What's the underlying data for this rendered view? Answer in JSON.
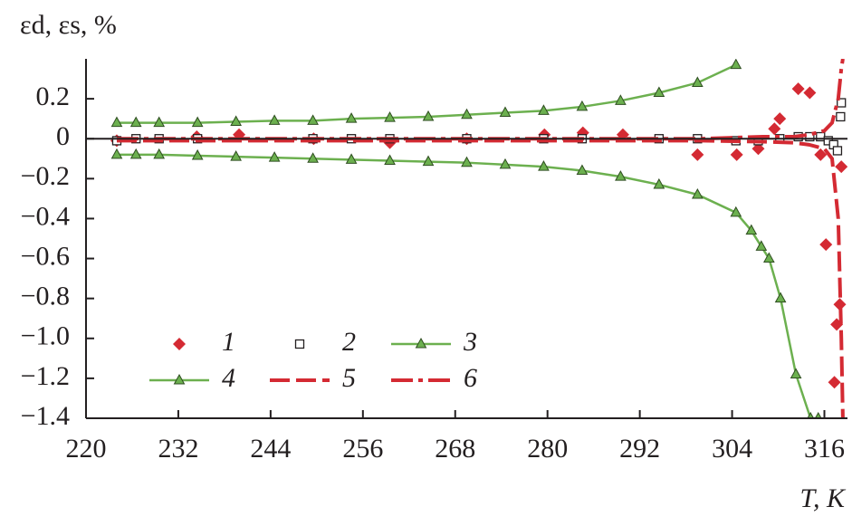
{
  "chart_data": {
    "type": "line",
    "ylabel": "εd, εs, %",
    "xlabel": "T, K",
    "xlim": [
      220,
      319
    ],
    "ylim": [
      -1.4,
      0.4
    ],
    "xticks": [
      220,
      232,
      244,
      256,
      268,
      280,
      292,
      304,
      316
    ],
    "yticks": [
      0.2,
      0,
      {
        "value": -0.2,
        "label": "−0.2"
      },
      {
        "value": -0.4,
        "label": "−0.4"
      },
      {
        "value": -0.6,
        "label": "−0.6"
      },
      {
        "value": -0.8,
        "label": "−0.8"
      },
      {
        "value": -1.0,
        "label": "−1.0"
      },
      {
        "value": -1.2,
        "label": "−1.2"
      },
      {
        "value": -1.4,
        "label": "−1.4"
      }
    ],
    "zero_line": true,
    "series": [
      {
        "name": "1",
        "color": "#d42a33",
        "mode": "markers",
        "marker": "diamond",
        "x": [
          224,
          234.4,
          239.9,
          249.6,
          259.5,
          269.5,
          279.6,
          284.6,
          289.8,
          299.5,
          304.6,
          307.4,
          309.5,
          310.2,
          312.6,
          314.1,
          315.5,
          316.2,
          317.3,
          317.6,
          318,
          318.2
        ],
        "values": [
          -0.01,
          0.01,
          0.02,
          0,
          -0.02,
          0,
          0.02,
          0.03,
          0.02,
          -0.08,
          -0.08,
          -0.05,
          0.05,
          0.1,
          0.25,
          0.23,
          -0.08,
          -0.53,
          -1.22,
          -0.93,
          -0.83,
          -0.14
        ]
      },
      {
        "name": "2",
        "color": "#231f20",
        "mode": "markers",
        "marker": "square",
        "x": [
          224,
          226.5,
          229.5,
          234.5,
          249.5,
          254.5,
          259.5,
          269.5,
          279.5,
          284.5,
          294.5,
          299.5,
          304.5,
          307.4,
          310.2,
          312.6,
          314.1,
          315.5,
          316.5,
          317.2,
          317.7,
          318.1,
          318.2
        ],
        "values": [
          -0.01,
          0,
          0,
          0,
          0,
          0,
          0,
          0,
          0,
          0,
          0,
          0,
          -0.01,
          -0.01,
          0,
          0.01,
          0.01,
          0.01,
          -0.01,
          -0.03,
          -0.06,
          0.11,
          0.18
        ]
      },
      {
        "name": "3",
        "color": "#6cb04f",
        "mode": "lines+markers",
        "marker": "triangle",
        "x": [
          224,
          226.5,
          229.5,
          234.5,
          239.5,
          244.5,
          249.5,
          254.5,
          259.5,
          264.5,
          269.5,
          274.5,
          279.5,
          284.5,
          289.5,
          294.5,
          299.5,
          304.5
        ],
        "values": [
          0.08,
          0.08,
          0.08,
          0.08,
          0.085,
          0.09,
          0.09,
          0.1,
          0.105,
          0.11,
          0.12,
          0.13,
          0.14,
          0.16,
          0.19,
          0.23,
          0.28,
          0.37
        ]
      },
      {
        "name": "4",
        "color": "#6cb04f",
        "mode": "lines+markers",
        "marker": "triangle",
        "x": [
          224,
          226.5,
          229.5,
          234.5,
          239.5,
          244.5,
          249.5,
          254.5,
          259.5,
          264.5,
          269.5,
          274.5,
          279.5,
          284.5,
          289.5,
          294.5,
          299.5,
          304.5,
          306.5,
          307.8,
          308.8,
          310.3,
          312.3,
          314.2,
          315.2
        ],
        "values": [
          -0.08,
          -0.08,
          -0.08,
          -0.085,
          -0.09,
          -0.095,
          -0.1,
          -0.105,
          -0.11,
          -0.115,
          -0.12,
          -0.13,
          -0.14,
          -0.16,
          -0.19,
          -0.23,
          -0.28,
          -0.37,
          -0.46,
          -0.54,
          -0.6,
          -0.8,
          -1.18,
          -1.4,
          -1.4
        ]
      },
      {
        "name": "5",
        "color": "#d42a33",
        "mode": "lines",
        "dash": "dash",
        "x": [
          224,
          240,
          260,
          280,
          300,
          308,
          312,
          314,
          316,
          317,
          317.8,
          318.2,
          318.4
        ],
        "values": [
          -0.01,
          -0.01,
          -0.01,
          -0.01,
          -0.01,
          -0.015,
          -0.02,
          -0.03,
          -0.05,
          -0.1,
          -0.4,
          -1.0,
          -1.4
        ]
      },
      {
        "name": "6",
        "color": "#d42a33",
        "mode": "lines",
        "dash": "dashdot",
        "x": [
          224,
          240,
          260,
          280,
          300,
          308,
          312,
          314,
          316,
          317,
          317.8,
          318.2,
          318.4
        ],
        "values": [
          0,
          0,
          0,
          0,
          0,
          0.01,
          0.01,
          0.02,
          0.04,
          0.08,
          0.2,
          0.35,
          0.4
        ]
      }
    ]
  }
}
